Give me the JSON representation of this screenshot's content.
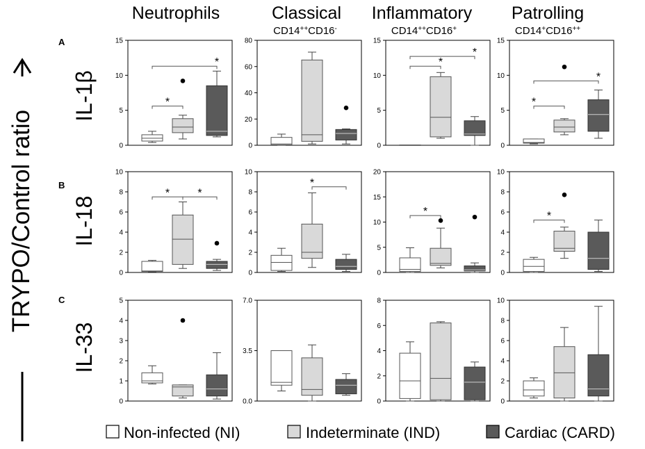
{
  "y_axis_label": "TRYPO/Control ratio",
  "columns": [
    {
      "title": "Neutrophils",
      "subtitle": ""
    },
    {
      "title": "Classical",
      "subtitle": "CD14++CD16-"
    },
    {
      "title": "Inflammatory",
      "subtitle": "CD14++CD16+"
    },
    {
      "title": "Patrolling",
      "subtitle": "CD14+CD16++"
    }
  ],
  "rows": [
    {
      "panel": "A",
      "label": "IL-1β"
    },
    {
      "panel": "B",
      "label": "IL-18"
    },
    {
      "panel": "C",
      "label": "IL-33"
    }
  ],
  "legend": [
    {
      "label": "Non-infected (NI)",
      "color": "#ffffff"
    },
    {
      "label": "Indeterminate (IND)",
      "color": "#d9d9d9"
    },
    {
      "label": "Cardiac (CARD)",
      "color": "#5a5a5a"
    }
  ],
  "chart_data": [
    {
      "type": "box",
      "row": 0,
      "col": 0,
      "ylim": [
        0,
        15
      ],
      "yticks": [
        "0",
        "5",
        "10",
        "15"
      ],
      "yticks_values": [
        0,
        5,
        10,
        15
      ],
      "boxes": [
        {
          "group": "NI",
          "min": 0.4,
          "q1": 0.6,
          "median": 1.0,
          "q3": 1.5,
          "max": 2.0,
          "outliers": []
        },
        {
          "group": "IND",
          "min": 0.9,
          "q1": 1.8,
          "median": 2.6,
          "q3": 3.8,
          "max": 4.3,
          "outliers": [
            9.2
          ]
        },
        {
          "group": "CARD",
          "min": 1.2,
          "q1": 1.4,
          "median": 2.0,
          "q3": 8.5,
          "max": 10.6,
          "outliers": []
        }
      ],
      "brackets": [
        {
          "from": 0,
          "to": 1,
          "y": 5.6,
          "star": 1
        },
        {
          "from": 0,
          "to": 2,
          "y": 11.3,
          "star": 2
        }
      ]
    },
    {
      "type": "box",
      "row": 0,
      "col": 1,
      "ylim": [
        0,
        80
      ],
      "yticks": [
        "0",
        "20",
        "40",
        "60",
        "80"
      ],
      "yticks_values": [
        0,
        20,
        40,
        60,
        80
      ],
      "boxes": [
        {
          "group": "NI",
          "min": 0,
          "q1": 0.3,
          "median": 1.0,
          "q3": 6.0,
          "max": 8.5,
          "outliers": []
        },
        {
          "group": "IND",
          "min": 1.0,
          "q1": 3.0,
          "median": 8.0,
          "q3": 65.0,
          "max": 71.0,
          "outliers": []
        },
        {
          "group": "CARD",
          "min": 1.0,
          "q1": 4.0,
          "median": 9.0,
          "q3": 12.0,
          "max": 12.5,
          "outliers": [
            28.5
          ]
        }
      ],
      "brackets": []
    },
    {
      "type": "box",
      "row": 0,
      "col": 2,
      "ylim": [
        0,
        15
      ],
      "yticks": [
        "0",
        "5",
        "10",
        "15"
      ],
      "yticks_values": [
        0,
        5,
        10,
        15
      ],
      "boxes": [
        {
          "group": "NI",
          "min": 0.05,
          "q1": 0.05,
          "median": 0.05,
          "q3": 0.05,
          "max": 0.05,
          "outliers": []
        },
        {
          "group": "IND",
          "min": 1.0,
          "q1": 1.2,
          "median": 4.0,
          "q3": 9.8,
          "max": 10.4,
          "outliers": []
        },
        {
          "group": "CARD",
          "min": 0,
          "q1": 1.4,
          "median": 1.6,
          "q3": 3.5,
          "max": 4.1,
          "outliers": []
        }
      ],
      "brackets": [
        {
          "from": 0,
          "to": 1,
          "y": 11.3,
          "star": 2
        },
        {
          "from": 0,
          "to": 2,
          "y": 12.7,
          "star": 2
        }
      ]
    },
    {
      "type": "box",
      "row": 0,
      "col": 3,
      "ylim": [
        0,
        15
      ],
      "yticks": [
        "0",
        "5",
        "10",
        "15"
      ],
      "yticks_values": [
        0,
        5,
        10,
        15
      ],
      "boxes": [
        {
          "group": "NI",
          "min": 0.2,
          "q1": 0.3,
          "median": 0.4,
          "q3": 0.9,
          "max": 0.9,
          "outliers": []
        },
        {
          "group": "IND",
          "min": 1.5,
          "q1": 1.9,
          "median": 2.6,
          "q3": 3.6,
          "max": 3.8,
          "outliers": [
            11.2
          ]
        },
        {
          "group": "CARD",
          "min": 1.0,
          "q1": 2.0,
          "median": 4.4,
          "q3": 6.5,
          "max": 7.9,
          "outliers": []
        }
      ],
      "brackets": [
        {
          "from": 0,
          "to": 1,
          "y": 5.6,
          "star": 0
        },
        {
          "from": 0,
          "to": 2,
          "y": 9.2,
          "star": 2
        }
      ]
    },
    {
      "type": "box",
      "row": 1,
      "col": 0,
      "ylim": [
        0,
        10
      ],
      "yticks": [
        "0",
        "2",
        "4",
        "6",
        "8",
        "10"
      ],
      "yticks_values": [
        0,
        2,
        4,
        6,
        8,
        10
      ],
      "boxes": [
        {
          "group": "NI",
          "min": 0.05,
          "q1": 0.1,
          "median": 0.15,
          "q3": 1.1,
          "max": 1.2,
          "outliers": []
        },
        {
          "group": "IND",
          "min": 0.4,
          "q1": 0.8,
          "median": 3.3,
          "q3": 5.7,
          "max": 7.0,
          "outliers": []
        },
        {
          "group": "CARD",
          "min": 0.2,
          "q1": 0.4,
          "median": 0.8,
          "q3": 1.1,
          "max": 1.3,
          "outliers": [
            2.9
          ]
        }
      ],
      "brackets": [
        {
          "from": 0,
          "to": 1,
          "y": 7.5,
          "star": 1
        },
        {
          "from": 1,
          "to": 2,
          "y": 7.5,
          "star": 1
        }
      ]
    },
    {
      "type": "box",
      "row": 1,
      "col": 1,
      "ylim": [
        0,
        10
      ],
      "yticks": [
        "0",
        "2",
        "4",
        "6",
        "8",
        "10"
      ],
      "yticks_values": [
        0,
        2,
        4,
        6,
        8,
        10
      ],
      "boxes": [
        {
          "group": "NI",
          "min": 0.1,
          "q1": 0.2,
          "median": 1.0,
          "q3": 1.7,
          "max": 2.4,
          "outliers": []
        },
        {
          "group": "IND",
          "min": 0.5,
          "q1": 1.4,
          "median": 2.0,
          "q3": 4.8,
          "max": 7.9,
          "outliers": []
        },
        {
          "group": "CARD",
          "min": 0.1,
          "q1": 0.3,
          "median": 0.6,
          "q3": 1.3,
          "max": 1.8,
          "outliers": []
        }
      ],
      "brackets": [
        {
          "from": 1,
          "to": 2,
          "y": 8.5,
          "star": 0
        }
      ]
    },
    {
      "type": "box",
      "row": 1,
      "col": 2,
      "ylim": [
        0,
        20
      ],
      "yticks": [
        "0",
        "5",
        "10",
        "15",
        "20"
      ],
      "yticks_values": [
        0,
        5,
        10,
        15,
        20
      ],
      "boxes": [
        {
          "group": "NI",
          "min": 0,
          "q1": 0.2,
          "median": 0.6,
          "q3": 2.9,
          "max": 4.9,
          "outliers": []
        },
        {
          "group": "IND",
          "min": 0.9,
          "q1": 1.4,
          "median": 1.8,
          "q3": 4.8,
          "max": 8.8,
          "outliers": [
            10.3
          ]
        },
        {
          "group": "CARD",
          "min": 0,
          "q1": 0.3,
          "median": 0.5,
          "q3": 1.3,
          "max": 1.9,
          "outliers": [
            11.0
          ]
        }
      ],
      "brackets": [
        {
          "from": 0,
          "to": 1,
          "y": 11.3,
          "star": 1
        }
      ]
    },
    {
      "type": "box",
      "row": 1,
      "col": 3,
      "ylim": [
        0,
        10
      ],
      "yticks": [
        "0",
        "2",
        "4",
        "6",
        "8",
        "10"
      ],
      "yticks_values": [
        0,
        2,
        4,
        6,
        8,
        10
      ],
      "boxes": [
        {
          "group": "NI",
          "min": 0,
          "q1": 0.1,
          "median": 0.6,
          "q3": 1.3,
          "max": 1.5,
          "outliers": []
        },
        {
          "group": "IND",
          "min": 1.4,
          "q1": 2.1,
          "median": 2.4,
          "q3": 4.1,
          "max": 4.5,
          "outliers": [
            7.7
          ]
        },
        {
          "group": "CARD",
          "min": 0.1,
          "q1": 0.3,
          "median": 1.4,
          "q3": 4.0,
          "max": 5.2,
          "outliers": []
        }
      ],
      "brackets": [
        {
          "from": 0,
          "to": 1,
          "y": 5.2,
          "star": 1
        }
      ]
    },
    {
      "type": "box",
      "row": 2,
      "col": 0,
      "ylim": [
        0,
        5
      ],
      "yticks": [
        "0",
        "1",
        "2",
        "3",
        "4",
        "5"
      ],
      "yticks_values": [
        0,
        1,
        2,
        3,
        4,
        5
      ],
      "boxes": [
        {
          "group": "NI",
          "min": 0.85,
          "q1": 0.9,
          "median": 1.0,
          "q3": 1.4,
          "max": 1.75,
          "outliers": []
        },
        {
          "group": "IND",
          "min": 0.15,
          "q1": 0.25,
          "median": 0.7,
          "q3": 0.8,
          "max": 0.8,
          "outliers": [
            4.0
          ]
        },
        {
          "group": "CARD",
          "min": 0.1,
          "q1": 0.25,
          "median": 0.6,
          "q3": 1.3,
          "max": 2.4,
          "outliers": []
        }
      ],
      "brackets": []
    },
    {
      "type": "box",
      "row": 2,
      "col": 1,
      "ylim": [
        0,
        7
      ],
      "yticks": [
        "0.0",
        "3.5",
        "7.0"
      ],
      "yticks_values": [
        0,
        3.5,
        7
      ],
      "boxes": [
        {
          "group": "NI",
          "min": 0.7,
          "q1": 1.1,
          "median": 1.3,
          "q3": 3.5,
          "max": 3.5,
          "outliers": []
        },
        {
          "group": "IND",
          "min": 0,
          "q1": 0.4,
          "median": 0.8,
          "q3": 3.0,
          "max": 3.9,
          "outliers": []
        },
        {
          "group": "CARD",
          "min": 0.4,
          "q1": 0.5,
          "median": 1.1,
          "q3": 1.5,
          "max": 1.9,
          "outliers": []
        }
      ],
      "brackets": []
    },
    {
      "type": "box",
      "row": 2,
      "col": 2,
      "ylim": [
        0,
        8
      ],
      "yticks": [
        "0",
        "2",
        "4",
        "6",
        "8"
      ],
      "yticks_values": [
        0,
        2,
        4,
        6,
        8
      ],
      "boxes": [
        {
          "group": "NI",
          "min": 0,
          "q1": 0.2,
          "median": 1.6,
          "q3": 3.8,
          "max": 4.7,
          "outliers": []
        },
        {
          "group": "IND",
          "min": 0,
          "q1": 0.1,
          "median": 1.8,
          "q3": 6.2,
          "max": 6.3,
          "outliers": []
        },
        {
          "group": "CARD",
          "min": 0,
          "q1": 0.1,
          "median": 1.5,
          "q3": 2.7,
          "max": 3.1,
          "outliers": []
        }
      ],
      "brackets": []
    },
    {
      "type": "box",
      "row": 2,
      "col": 3,
      "ylim": [
        0,
        10
      ],
      "yticks": [
        "0",
        "2",
        "4",
        "6",
        "8",
        "10"
      ],
      "yticks_values": [
        0,
        2,
        4,
        6,
        8,
        10
      ],
      "boxes": [
        {
          "group": "NI",
          "min": 0.3,
          "q1": 0.5,
          "median": 1.1,
          "q3": 2.0,
          "max": 2.3,
          "outliers": []
        },
        {
          "group": "IND",
          "min": 0,
          "q1": 0.3,
          "median": 2.8,
          "q3": 5.4,
          "max": 7.3,
          "outliers": []
        },
        {
          "group": "CARD",
          "min": 0,
          "q1": 0.5,
          "median": 1.2,
          "q3": 4.6,
          "max": 9.4,
          "outliers": []
        }
      ],
      "brackets": []
    }
  ]
}
